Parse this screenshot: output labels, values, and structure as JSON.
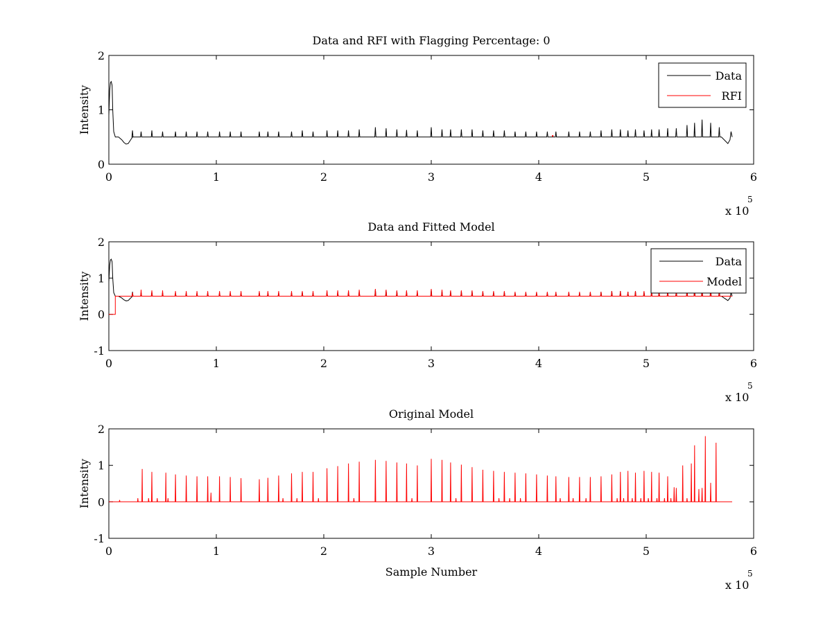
{
  "chart_data": [
    {
      "type": "line",
      "title": "Data and RFI with Flagging Percentage: 0",
      "xlabel": "",
      "ylabel": "Intensity",
      "xlim": [
        0,
        600000
      ],
      "ylim": [
        0,
        2
      ],
      "x_ticks": [
        0,
        100000,
        200000,
        300000,
        400000,
        500000,
        600000
      ],
      "x_tick_labels": [
        "0",
        "1",
        "2",
        "3",
        "4",
        "5",
        "6"
      ],
      "y_ticks": [
        0,
        1,
        2
      ],
      "y_tick_labels": [
        "0",
        "1",
        "2"
      ],
      "x_multiplier_base": "x 10",
      "x_multiplier_exp": "5",
      "legend_position": "top-right",
      "series": [
        {
          "name": "Data",
          "color": "#000000",
          "kind": "data",
          "baseline": 0.5,
          "spike_x": [
            22000,
            30000,
            40000,
            50000,
            62000,
            72000,
            82000,
            92000,
            103000,
            113000,
            123000,
            140000,
            148000,
            158000,
            170000,
            180000,
            190000,
            203000,
            213000,
            223000,
            233000,
            248000,
            258000,
            268000,
            277000,
            287000,
            300000,
            310000,
            318000,
            328000,
            338000,
            348000,
            358000,
            368000,
            378000,
            388000,
            398000,
            408000,
            416000,
            428000,
            438000,
            448000,
            458000,
            468000,
            476000,
            483000,
            490000,
            498000,
            505000,
            512000,
            520000,
            528000,
            538000,
            545000,
            552000,
            560000,
            568000
          ],
          "spike_y": [
            0.62,
            0.6,
            0.62,
            0.6,
            0.6,
            0.6,
            0.6,
            0.6,
            0.6,
            0.6,
            0.6,
            0.6,
            0.6,
            0.6,
            0.6,
            0.62,
            0.6,
            0.62,
            0.62,
            0.62,
            0.64,
            0.68,
            0.66,
            0.64,
            0.63,
            0.62,
            0.68,
            0.64,
            0.64,
            0.64,
            0.64,
            0.62,
            0.62,
            0.62,
            0.6,
            0.6,
            0.6,
            0.6,
            0.6,
            0.6,
            0.6,
            0.6,
            0.62,
            0.64,
            0.64,
            0.62,
            0.64,
            0.62,
            0.64,
            0.64,
            0.66,
            0.66,
            0.72,
            0.76,
            0.82,
            0.76,
            0.68
          ]
        },
        {
          "name": "RFI",
          "color": "#ff0000",
          "kind": "rfi",
          "points": [
            [
              413000,
              0.52
            ]
          ]
        }
      ]
    },
    {
      "type": "line",
      "title": "Data and Fitted Model",
      "xlabel": "",
      "ylabel": "Intensity",
      "xlim": [
        0,
        600000
      ],
      "ylim": [
        -1,
        2
      ],
      "x_ticks": [
        0,
        100000,
        200000,
        300000,
        400000,
        500000,
        600000
      ],
      "x_tick_labels": [
        "0",
        "1",
        "2",
        "3",
        "4",
        "5",
        "6"
      ],
      "y_ticks": [
        -1,
        0,
        1,
        2
      ],
      "y_tick_labels": [
        "-1",
        "0",
        "1",
        "2"
      ],
      "x_multiplier_base": "x 10",
      "x_multiplier_exp": "5",
      "legend_position": "top-right",
      "series": [
        {
          "name": "Data",
          "color": "#000000",
          "kind": "data",
          "baseline": 0.5,
          "spike_x": [
            22000,
            30000,
            40000,
            50000,
            62000,
            72000,
            82000,
            92000,
            103000,
            113000,
            123000,
            140000,
            148000,
            158000,
            170000,
            180000,
            190000,
            203000,
            213000,
            223000,
            233000,
            248000,
            258000,
            268000,
            277000,
            287000,
            300000,
            310000,
            318000,
            328000,
            338000,
            348000,
            358000,
            368000,
            378000,
            388000,
            398000,
            408000,
            416000,
            428000,
            438000,
            448000,
            458000,
            468000,
            476000,
            483000,
            490000,
            498000,
            505000,
            512000,
            520000,
            528000,
            538000,
            545000,
            552000,
            560000,
            568000
          ],
          "spike_y": [
            0.62,
            0.6,
            0.62,
            0.6,
            0.6,
            0.6,
            0.6,
            0.6,
            0.6,
            0.6,
            0.6,
            0.6,
            0.6,
            0.6,
            0.6,
            0.62,
            0.6,
            0.62,
            0.62,
            0.62,
            0.64,
            0.68,
            0.66,
            0.64,
            0.63,
            0.62,
            0.68,
            0.64,
            0.64,
            0.64,
            0.64,
            0.62,
            0.62,
            0.62,
            0.6,
            0.6,
            0.6,
            0.6,
            0.6,
            0.6,
            0.6,
            0.6,
            0.62,
            0.64,
            0.64,
            0.62,
            0.64,
            0.62,
            0.64,
            0.64,
            0.66,
            0.66,
            0.72,
            0.76,
            0.82,
            0.76,
            0.68
          ]
        },
        {
          "name": "Model",
          "color": "#ff0000",
          "kind": "model",
          "baseline": 0.5,
          "start_level": 0.0,
          "step_x": 6000,
          "spike_x": [
            22000,
            30000,
            40000,
            50000,
            62000,
            72000,
            82000,
            92000,
            103000,
            113000,
            123000,
            140000,
            148000,
            158000,
            170000,
            180000,
            190000,
            203000,
            213000,
            223000,
            233000,
            248000,
            258000,
            268000,
            277000,
            287000,
            300000,
            310000,
            318000,
            328000,
            338000,
            348000,
            358000,
            368000,
            378000,
            388000,
            398000,
            408000,
            416000,
            428000,
            438000,
            448000,
            458000,
            468000,
            476000,
            483000,
            490000,
            498000,
            505000,
            512000,
            520000,
            528000,
            538000,
            545000,
            552000,
            560000,
            568000
          ],
          "spike_y": [
            0.6,
            0.68,
            0.66,
            0.66,
            0.64,
            0.64,
            0.64,
            0.64,
            0.64,
            0.64,
            0.64,
            0.64,
            0.64,
            0.64,
            0.64,
            0.64,
            0.64,
            0.66,
            0.66,
            0.66,
            0.68,
            0.7,
            0.68,
            0.66,
            0.66,
            0.66,
            0.7,
            0.68,
            0.66,
            0.66,
            0.66,
            0.64,
            0.64,
            0.64,
            0.62,
            0.62,
            0.62,
            0.62,
            0.62,
            0.62,
            0.62,
            0.62,
            0.62,
            0.64,
            0.64,
            0.62,
            0.64,
            0.64,
            0.64,
            0.64,
            0.66,
            0.66,
            0.68,
            0.66,
            0.66,
            0.64,
            0.6
          ]
        }
      ]
    },
    {
      "type": "line",
      "title": "Original Model",
      "xlabel": "Sample Number",
      "ylabel": "Intensity",
      "xlim": [
        0,
        600000
      ],
      "ylim": [
        -1,
        2
      ],
      "x_ticks": [
        0,
        100000,
        200000,
        300000,
        400000,
        500000,
        600000
      ],
      "x_tick_labels": [
        "0",
        "1",
        "2",
        "3",
        "4",
        "5",
        "6"
      ],
      "y_ticks": [
        -1,
        0,
        1,
        2
      ],
      "y_tick_labels": [
        "-1",
        "0",
        "1",
        "2"
      ],
      "x_multiplier_base": "x 10",
      "x_multiplier_exp": "5",
      "series": [
        {
          "color": "#ff0000",
          "kind": "original",
          "baseline": 0.0,
          "spike_x": [
            10000,
            27000,
            31000,
            37000,
            40000,
            45000,
            53000,
            55000,
            62000,
            72000,
            82000,
            92000,
            95000,
            103000,
            113000,
            123000,
            140000,
            148000,
            158000,
            162000,
            170000,
            175000,
            180000,
            190000,
            195000,
            203000,
            213000,
            223000,
            228000,
            233000,
            248000,
            258000,
            268000,
            277000,
            282000,
            287000,
            300000,
            310000,
            318000,
            323000,
            328000,
            338000,
            348000,
            358000,
            363000,
            368000,
            373000,
            378000,
            383000,
            388000,
            398000,
            408000,
            416000,
            420000,
            428000,
            432000,
            438000,
            444000,
            448000,
            458000,
            468000,
            473000,
            476000,
            479000,
            483000,
            487000,
            490000,
            495000,
            498000,
            502000,
            505000,
            510000,
            512000,
            517000,
            520000,
            523000,
            526000,
            528000,
            534000,
            538000,
            542000,
            545000,
            549000,
            552000,
            555000,
            560000,
            565000
          ],
          "spike_y": [
            0.05,
            0.1,
            0.9,
            0.1,
            0.82,
            0.1,
            0.8,
            0.1,
            0.75,
            0.72,
            0.7,
            0.7,
            0.25,
            0.7,
            0.68,
            0.65,
            0.62,
            0.66,
            0.72,
            0.1,
            0.78,
            0.1,
            0.82,
            0.82,
            0.1,
            0.92,
            0.98,
            1.05,
            0.1,
            1.1,
            1.15,
            1.12,
            1.08,
            1.05,
            0.1,
            1.0,
            1.18,
            1.15,
            1.08,
            0.1,
            1.02,
            0.95,
            0.88,
            0.85,
            0.1,
            0.82,
            0.1,
            0.8,
            0.1,
            0.78,
            0.75,
            0.72,
            0.7,
            0.1,
            0.68,
            0.1,
            0.68,
            0.1,
            0.68,
            0.7,
            0.75,
            0.1,
            0.82,
            0.1,
            0.85,
            0.1,
            0.8,
            0.1,
            0.85,
            0.1,
            0.82,
            0.1,
            0.8,
            0.1,
            0.7,
            0.1,
            0.4,
            0.38,
            1.0,
            0.1,
            1.05,
            1.55,
            0.35,
            0.38,
            1.8,
            0.52,
            1.62
          ]
        }
      ]
    }
  ]
}
